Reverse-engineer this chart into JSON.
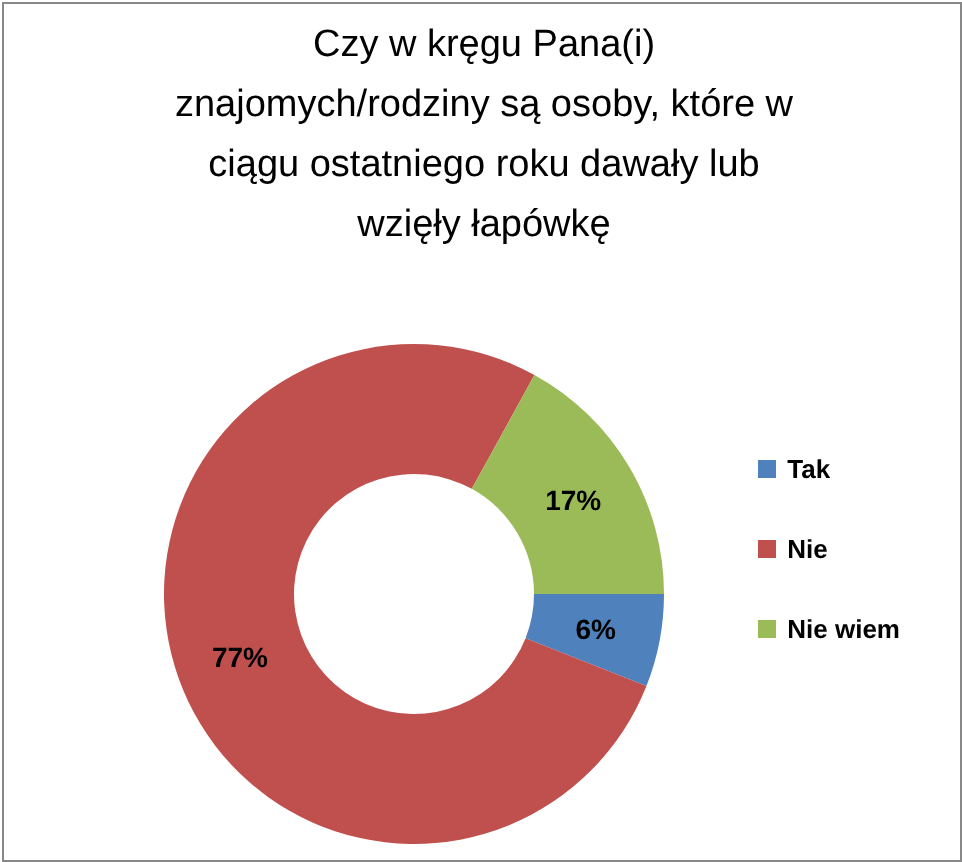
{
  "chart_data": {
    "type": "donut",
    "title": "Czy w kręgu Pana(i) znajomych/rodziny są osoby, które w ciągu ostatniego roku dawały lub wzięły łapówkę",
    "categories": [
      "Tak",
      "Nie",
      "Nie wiem"
    ],
    "values": [
      6,
      77,
      17
    ],
    "value_labels": [
      "6%",
      "77%",
      "17%"
    ],
    "colors": [
      "#4f81bd",
      "#c0504d",
      "#9bbb59"
    ],
    "legend": "right"
  }
}
